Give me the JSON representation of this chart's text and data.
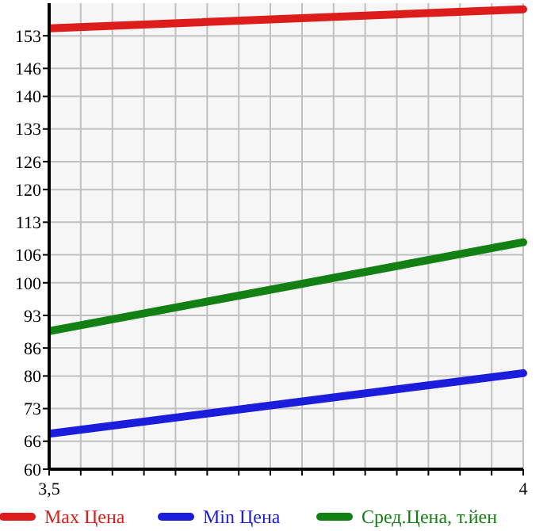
{
  "chart_data": {
    "type": "line",
    "x": [
      3.5,
      4
    ],
    "series": [
      {
        "name": "Max Цена",
        "color": "#dd1c1c",
        "values": [
          154.6,
          158.7
        ]
      },
      {
        "name": "Min Цена",
        "color": "#1c1cdd",
        "values": [
          67.6,
          80.6
        ]
      },
      {
        "name": "Сред.Цена, т.йен",
        "color": "#138013",
        "values": [
          89.6,
          108.7
        ]
      }
    ],
    "xlim": [
      3.5,
      4
    ],
    "xticks": [
      {
        "value": 3.5,
        "label": "3,5"
      },
      {
        "value": 3.5333,
        "label": null
      },
      {
        "value": 3.5667,
        "label": null
      },
      {
        "value": 3.6,
        "label": null
      },
      {
        "value": 3.6333,
        "label": null
      },
      {
        "value": 3.6667,
        "label": null
      },
      {
        "value": 3.7,
        "label": null
      },
      {
        "value": 3.7333,
        "label": null
      },
      {
        "value": 3.7667,
        "label": null
      },
      {
        "value": 3.8,
        "label": null
      },
      {
        "value": 3.8333,
        "label": null
      },
      {
        "value": 3.8667,
        "label": null
      },
      {
        "value": 3.9,
        "label": null
      },
      {
        "value": 3.9333,
        "label": null
      },
      {
        "value": 3.9667,
        "label": null
      },
      {
        "value": 4,
        "label": "4"
      }
    ],
    "ylim": [
      60,
      160
    ],
    "yticks": [
      60,
      66,
      73,
      80,
      86,
      93,
      100,
      106,
      113,
      120,
      126,
      133,
      140,
      146,
      153
    ],
    "grid": true,
    "legend": "bottom",
    "marker": "none",
    "line_style": "solid"
  }
}
